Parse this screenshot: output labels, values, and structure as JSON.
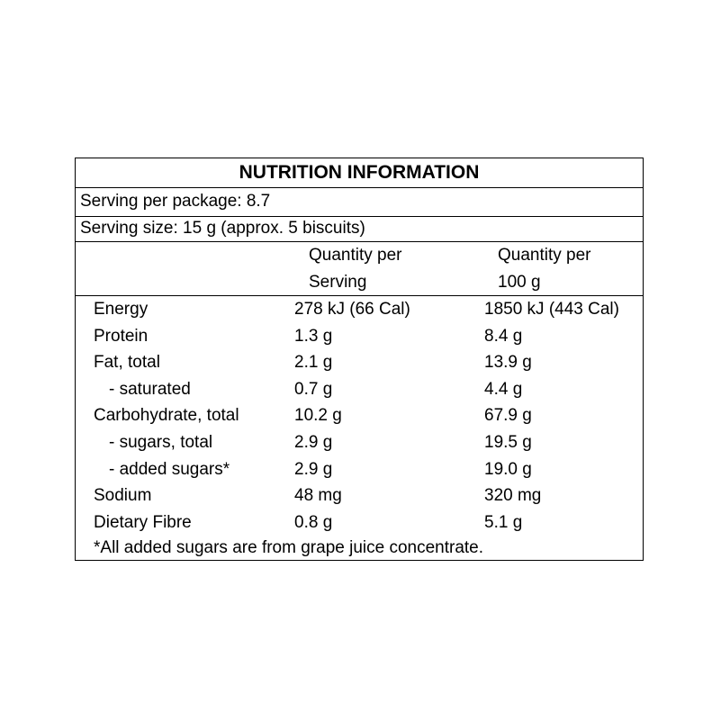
{
  "panel": {
    "title": "NUTRITION INFORMATION",
    "serving_per_package": "Serving per package: 8.7",
    "serving_size": "Serving size: 15 g (approx. 5 biscuits)",
    "col_headers": {
      "per_serving_line1": "Quantity per",
      "per_serving_line2": "Serving",
      "per_100g_line1": "Quantity per",
      "per_100g_line2": "100 g"
    },
    "rows": [
      {
        "label": "Energy",
        "per_serving": "278 kJ (66 Cal)",
        "per_100g": "1850 kJ (443 Cal)"
      },
      {
        "label": "Protein",
        "per_serving": "1.3 g",
        "per_100g": "8.4 g"
      },
      {
        "label": "Fat, total",
        "per_serving": "2.1 g",
        "per_100g": "13.9 g"
      },
      {
        "label": "- saturated",
        "per_serving": "0.7 g",
        "per_100g": "4.4 g"
      },
      {
        "label": "Carbohydrate, total",
        "per_serving": "10.2 g",
        "per_100g": "67.9 g"
      },
      {
        "label": "- sugars, total",
        "per_serving": "2.9 g",
        "per_100g": "19.5 g"
      },
      {
        "label": "- added sugars*",
        "per_serving": "2.9 g",
        "per_100g": "19.0 g"
      },
      {
        "label": "Sodium",
        "per_serving": "48 mg",
        "per_100g": "320 mg"
      },
      {
        "label": "Dietary Fibre",
        "per_serving": "0.8 g",
        "per_100g": "5.1 g"
      }
    ],
    "footnote": "*All added sugars are from grape juice concentrate."
  }
}
